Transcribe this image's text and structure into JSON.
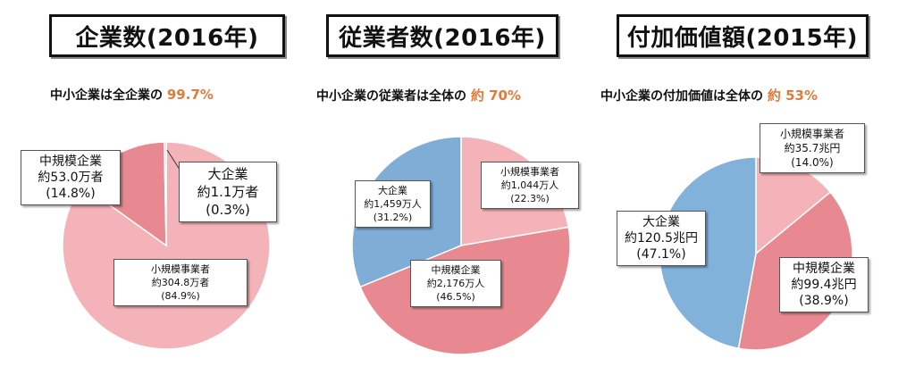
{
  "chart_data": [
    {
      "type": "pie",
      "title": "企業数(2016年)",
      "subtitle_prefix": "中小企業は全企業の",
      "subtitle_highlight": "99.7%",
      "slices": [
        {
          "name": "小規模事業者",
          "amount": "約304.8万者",
          "percent": "(84.9%)",
          "value": 84.9,
          "color": "#f4b3b8"
        },
        {
          "name": "中規模企業",
          "amount": "約53.0万者",
          "percent": "(14.8%)",
          "value": 14.8,
          "color": "#e88890"
        },
        {
          "name": "大企業",
          "amount": "約1.1万者",
          "percent": "(0.3%)",
          "value": 0.3,
          "color": "#9ab9da"
        }
      ]
    },
    {
      "type": "pie",
      "title": "従業者数(2016年)",
      "subtitle_prefix": "中小企業の従業者は全体の",
      "subtitle_highlight": "約 70%",
      "slices": [
        {
          "name": "小規模事業者",
          "amount": "約1,044万人",
          "percent": "(22.3%)",
          "value": 22.3,
          "color": "#f4b3b8"
        },
        {
          "name": "中規模企業",
          "amount": "約2,176万人",
          "percent": "(46.5%)",
          "value": 46.5,
          "color": "#e88890"
        },
        {
          "name": "大企業",
          "amount": "約1,459万人",
          "percent": "(31.2%)",
          "value": 31.2,
          "color": "#7fadd6"
        }
      ]
    },
    {
      "type": "pie",
      "title": "付加価値額(2015年)",
      "subtitle_prefix": "中小企業の付加価値は全体の",
      "subtitle_highlight": "約 53%",
      "slices": [
        {
          "name": "小規模事業者",
          "amount": "約35.7兆円",
          "percent": "(14.0%)",
          "value": 14.0,
          "color": "#f4b3b8"
        },
        {
          "name": "中規模企業",
          "amount": "約99.4兆円",
          "percent": "(38.9%)",
          "value": 38.9,
          "color": "#e88890"
        },
        {
          "name": "大企業",
          "amount": "約120.5兆円",
          "percent": "(47.1%)",
          "value": 47.1,
          "color": "#82b1da"
        }
      ]
    }
  ]
}
